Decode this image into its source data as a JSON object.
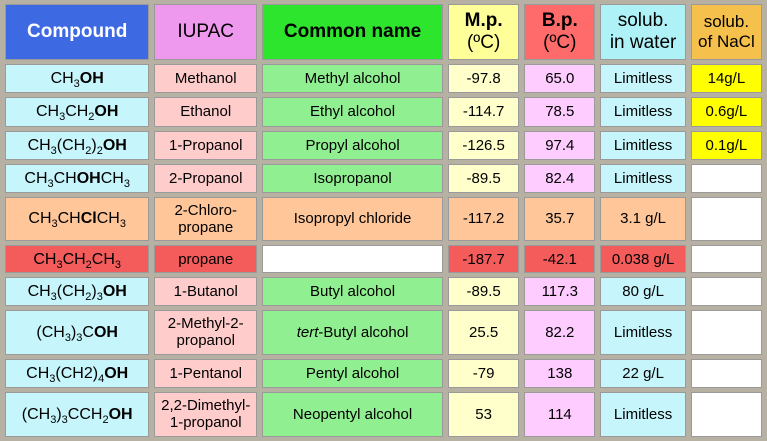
{
  "headers": {
    "compound": "Compound",
    "iupac": "IUPAC",
    "common": "Common name",
    "mp_line1": "M.p.",
    "mp_line2": "(ºC)",
    "bp_line1": "B.p.",
    "bp_line2": "(ºC)",
    "solw_line1": "solub.",
    "solw_line2": "in water",
    "soln_line1": "solub.",
    "soln_line2": "of NaCl"
  },
  "rows": [
    {
      "formula": [
        [
          "CH",
          ""
        ],
        [
          "3",
          "sub"
        ],
        [
          "OH",
          "b"
        ]
      ],
      "iupac": [
        "Methanol"
      ],
      "common": [
        [
          "Methyl alcohol",
          ""
        ]
      ],
      "mp": "-97.8",
      "bp": "65.0",
      "solw": "Limitless",
      "soln": "14g/L"
    },
    {
      "formula": [
        [
          "CH",
          ""
        ],
        [
          "3",
          "sub"
        ],
        [
          "CH",
          ""
        ],
        [
          "2",
          "sub"
        ],
        [
          "OH",
          "b"
        ]
      ],
      "iupac": [
        "Ethanol"
      ],
      "common": [
        [
          "Ethyl alcohol",
          ""
        ]
      ],
      "mp": "-114.7",
      "bp": "78.5",
      "solw": "Limitless",
      "soln": "0.6g/L"
    },
    {
      "formula": [
        [
          "CH",
          ""
        ],
        [
          "3",
          "sub"
        ],
        [
          "(CH",
          ""
        ],
        [
          "2",
          "sub"
        ],
        [
          ")",
          ""
        ],
        [
          "2",
          "sub"
        ],
        [
          "OH",
          "b"
        ]
      ],
      "iupac": [
        "1-Propanol"
      ],
      "common": [
        [
          "Propyl alcohol",
          ""
        ]
      ],
      "mp": "-126.5",
      "bp": "97.4",
      "solw": "Limitless",
      "soln": "0.1g/L"
    },
    {
      "formula": [
        [
          "CH",
          ""
        ],
        [
          "3",
          "sub"
        ],
        [
          "CH",
          ""
        ],
        [
          "OH",
          "b"
        ],
        [
          "CH",
          ""
        ],
        [
          "3",
          "sub"
        ]
      ],
      "iupac": [
        "2-Propanol"
      ],
      "common": [
        [
          "Isopropanol",
          ""
        ]
      ],
      "mp": "-89.5",
      "bp": "82.4",
      "solw": "Limitless",
      "soln": ""
    },
    {
      "formula": [
        [
          "CH",
          ""
        ],
        [
          "3",
          "sub"
        ],
        [
          "CH",
          ""
        ],
        [
          "Cl",
          "b"
        ],
        [
          "CH",
          ""
        ],
        [
          "3",
          "sub"
        ]
      ],
      "iupac": [
        "2-Chloro-",
        "propane"
      ],
      "common": [
        [
          "Isopropyl chloride",
          ""
        ]
      ],
      "mp": "-117.2",
      "bp": "35.7",
      "solw": "3.1 g/L",
      "soln": ""
    },
    {
      "formula": [
        [
          "CH",
          ""
        ],
        [
          "3",
          "sub"
        ],
        [
          "CH",
          ""
        ],
        [
          "2",
          "sub"
        ],
        [
          "CH",
          ""
        ],
        [
          "3",
          "sub"
        ]
      ],
      "iupac": [
        "propane"
      ],
      "common": [],
      "mp": "-187.7",
      "bp": "-42.1",
      "solw": "0.038 g/L",
      "soln": ""
    },
    {
      "formula": [
        [
          "CH",
          ""
        ],
        [
          "3",
          "sub"
        ],
        [
          "(CH",
          ""
        ],
        [
          "2",
          "sub"
        ],
        [
          ")",
          ""
        ],
        [
          "3",
          "sub"
        ],
        [
          "OH",
          "b"
        ]
      ],
      "iupac": [
        "1-Butanol"
      ],
      "common": [
        [
          "Butyl alcohol",
          ""
        ]
      ],
      "mp": "-89.5",
      "bp": "117.3",
      "solw": "80 g/L",
      "soln": ""
    },
    {
      "formula": [
        [
          "(CH",
          ""
        ],
        [
          "3",
          "sub"
        ],
        [
          ")",
          ""
        ],
        [
          "3",
          "sub"
        ],
        [
          "C",
          ""
        ],
        [
          "OH",
          "b"
        ]
      ],
      "iupac": [
        "2-Methyl-2-",
        "propanol"
      ],
      "common": [
        [
          "tert",
          "i"
        ],
        [
          "-Butyl alcohol",
          ""
        ]
      ],
      "mp": "25.5",
      "bp": "82.2",
      "solw": "Limitless",
      "soln": ""
    },
    {
      "formula": [
        [
          "CH",
          ""
        ],
        [
          "3",
          "sub"
        ],
        [
          "(CH2)",
          ""
        ],
        [
          "4",
          "sub"
        ],
        [
          "OH",
          "b"
        ]
      ],
      "iupac": [
        "1-Pentanol"
      ],
      "common": [
        [
          "Pentyl alcohol",
          ""
        ]
      ],
      "mp": "-79",
      "bp": "138",
      "solw": "22 g/L",
      "soln": ""
    },
    {
      "formula": [
        [
          "(CH",
          ""
        ],
        [
          "3",
          "sub"
        ],
        [
          ")",
          ""
        ],
        [
          "3",
          "sub"
        ],
        [
          "CCH",
          ""
        ],
        [
          "2",
          "sub"
        ],
        [
          "OH",
          "b"
        ]
      ],
      "iupac": [
        "2,2-Dimethyl-",
        "1-propanol"
      ],
      "common": [
        [
          "Neopentyl alcohol",
          ""
        ]
      ],
      "mp": "53",
      "bp": "114",
      "solw": "Limitless",
      "soln": ""
    }
  ]
}
